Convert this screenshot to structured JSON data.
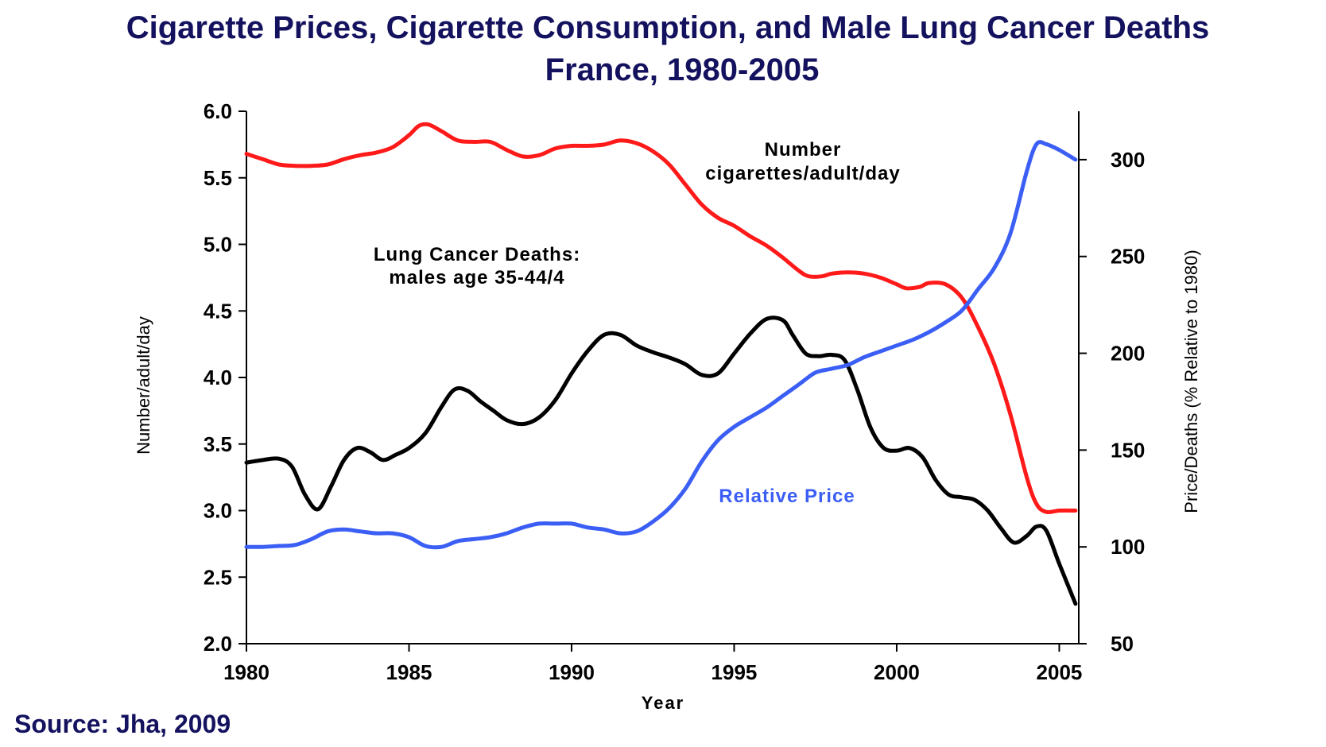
{
  "title_line1": "Cigarette Prices, Cigarette Consumption, and Male Lung Cancer Deaths",
  "title_line2": "France, 1980-2005",
  "source": "Source: Jha, 2009",
  "chart_data": {
    "type": "line",
    "xlabel": "Year",
    "ylabel_left": "Number/adult/day",
    "ylabel_right": "Price/Deaths (% Relative to 1980)",
    "xlim": [
      1980,
      2005.6
    ],
    "ylim_left": [
      2.0,
      6.0
    ],
    "ylim_right": [
      50,
      325
    ],
    "x_ticks": [
      "1980",
      "1985",
      "1990",
      "1995",
      "2000",
      "2005"
    ],
    "y_ticks_left": [
      "2.0",
      "2.5",
      "3.0",
      "3.5",
      "4.0",
      "4.5",
      "5.0",
      "5.5",
      "6.0"
    ],
    "y_ticks_right": [
      "50",
      "100",
      "150",
      "200",
      "250",
      "300"
    ],
    "grid": false,
    "series": [
      {
        "name": "Number cigarettes/adult/day",
        "label_lines": [
          "Number",
          "cigarettes/adult/day"
        ],
        "axis": "left",
        "color": "#ff1a1a",
        "x": [
          1980,
          1980.5,
          1981,
          1981.5,
          1982,
          1982.5,
          1983,
          1983.5,
          1984,
          1984.5,
          1985,
          1985.3,
          1985.6,
          1986,
          1986.5,
          1987,
          1987.5,
          1988,
          1988.5,
          1989,
          1989.5,
          1990,
          1990.5,
          1991,
          1991.5,
          1992,
          1992.5,
          1993,
          1993.5,
          1994,
          1994.5,
          1995,
          1995.5,
          1996,
          1996.5,
          1997,
          1997.3,
          1997.7,
          1998,
          1998.5,
          1999,
          1999.5,
          2000,
          2000.3,
          2000.7,
          2001,
          2001.5,
          2002,
          2002.5,
          2003,
          2003.5,
          2004,
          2004.3,
          2004.6,
          2005,
          2005.5
        ],
        "values": [
          5.68,
          5.64,
          5.6,
          5.59,
          5.59,
          5.6,
          5.64,
          5.67,
          5.69,
          5.73,
          5.82,
          5.89,
          5.9,
          5.85,
          5.78,
          5.77,
          5.77,
          5.71,
          5.66,
          5.67,
          5.72,
          5.74,
          5.74,
          5.75,
          5.78,
          5.76,
          5.7,
          5.6,
          5.45,
          5.3,
          5.2,
          5.14,
          5.06,
          4.99,
          4.9,
          4.8,
          4.76,
          4.76,
          4.78,
          4.79,
          4.78,
          4.75,
          4.7,
          4.67,
          4.68,
          4.71,
          4.7,
          4.6,
          4.38,
          4.1,
          3.72,
          3.25,
          3.05,
          2.99,
          3.0,
          3.0
        ]
      },
      {
        "name": "Lung Cancer Deaths: males age 35-44/4",
        "label_lines": [
          "Lung Cancer Deaths:",
          "males age 35-44/4"
        ],
        "axis": "left",
        "color": "#000000",
        "x": [
          1980,
          1980.5,
          1981,
          1981.4,
          1981.8,
          1982.2,
          1982.6,
          1983,
          1983.4,
          1983.8,
          1984.2,
          1984.6,
          1985,
          1985.5,
          1986,
          1986.4,
          1986.8,
          1987.2,
          1987.6,
          1988,
          1988.5,
          1989,
          1989.5,
          1990,
          1990.5,
          1991,
          1991.5,
          1992,
          1992.5,
          1993,
          1993.5,
          1994,
          1994.5,
          1995,
          1995.5,
          1996,
          1996.5,
          1996.8,
          1997.2,
          1997.6,
          1998,
          1998.4,
          1998.8,
          1999.2,
          1999.6,
          2000,
          2000.4,
          2000.8,
          2001.2,
          2001.6,
          2002,
          2002.4,
          2002.8,
          2003.2,
          2003.6,
          2004,
          2004.3,
          2004.6,
          2005,
          2005.5
        ],
        "values": [
          3.36,
          3.38,
          3.39,
          3.33,
          3.12,
          3.01,
          3.18,
          3.38,
          3.47,
          3.44,
          3.38,
          3.42,
          3.47,
          3.58,
          3.78,
          3.91,
          3.9,
          3.82,
          3.75,
          3.68,
          3.65,
          3.7,
          3.83,
          4.03,
          4.2,
          4.32,
          4.32,
          4.24,
          4.19,
          4.15,
          4.1,
          4.02,
          4.03,
          4.18,
          4.33,
          4.44,
          4.43,
          4.32,
          4.18,
          4.16,
          4.17,
          4.13,
          3.9,
          3.62,
          3.47,
          3.45,
          3.47,
          3.4,
          3.23,
          3.12,
          3.1,
          3.08,
          3.0,
          2.87,
          2.76,
          2.81,
          2.88,
          2.85,
          2.6,
          2.3
        ]
      },
      {
        "name": "Relative Price",
        "label_lines": [
          "Relative Price"
        ],
        "axis": "right",
        "color": "#3b5ef5",
        "x": [
          1980,
          1980.5,
          1981,
          1981.5,
          1982,
          1982.5,
          1983,
          1983.5,
          1984,
          1984.5,
          1985,
          1985.5,
          1986,
          1986.5,
          1987,
          1987.5,
          1988,
          1988.5,
          1989,
          1989.5,
          1990,
          1990.5,
          1991,
          1991.5,
          1992,
          1992.5,
          1993,
          1993.5,
          1994,
          1994.5,
          1995,
          1995.5,
          1996,
          1996.5,
          1997,
          1997.5,
          1998,
          1998.5,
          1999,
          1999.5,
          2000,
          2000.5,
          2001,
          2001.5,
          2002,
          2002.5,
          2003,
          2003.5,
          2004,
          2004.3,
          2004.6,
          2005,
          2005.5
        ],
        "values": [
          100,
          100,
          100.5,
          101,
          104,
          108,
          109,
          108,
          107,
          107,
          105,
          100.5,
          100,
          103,
          104,
          105,
          107,
          110,
          112,
          112,
          112,
          110,
          109,
          107,
          108,
          113,
          120,
          130,
          144,
          155,
          162,
          167,
          172,
          178,
          184,
          190,
          192,
          194,
          198,
          201,
          204,
          207,
          211,
          216,
          222,
          233,
          244,
          262,
          294,
          308,
          308,
          305,
          300
        ]
      }
    ]
  }
}
